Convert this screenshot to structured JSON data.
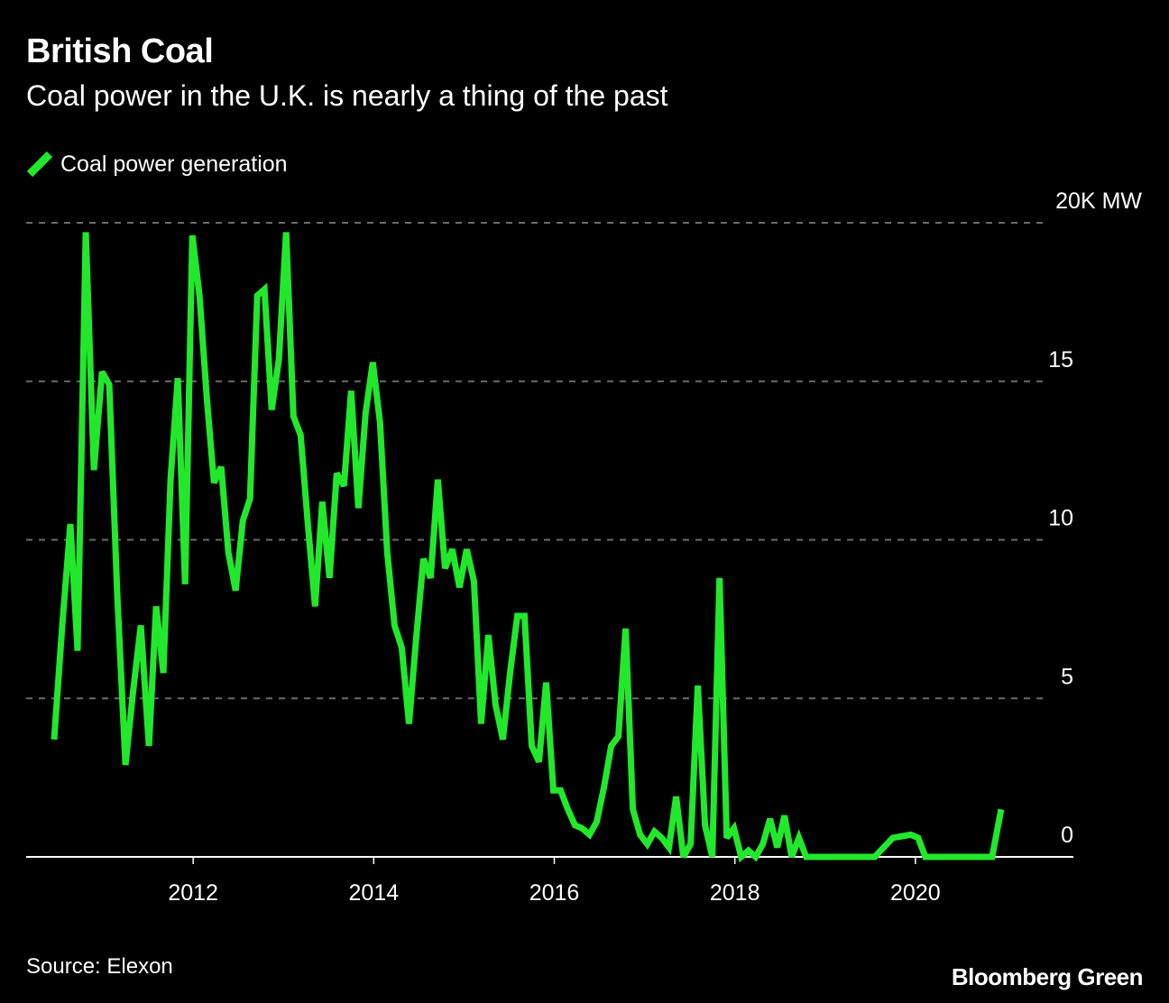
{
  "header": {
    "title": "British Coal",
    "subtitle": "Coal power in the U.K. is nearly a thing of the past"
  },
  "legend": {
    "label": "Coal power generation",
    "color": "#22e82c"
  },
  "footer": {
    "source": "Source: Elexon",
    "brand": "Bloomberg Green"
  },
  "chart_data": {
    "type": "line",
    "title": "British Coal",
    "subtitle": "Coal power in the U.K. is nearly a thing of the past",
    "xlabel": "",
    "ylabel": "",
    "x_ticks": [
      "2012",
      "2014",
      "2016",
      "2018",
      "2020"
    ],
    "y_ticks": [
      {
        "value": 20000,
        "label": "20K MW"
      },
      {
        "value": 15000,
        "label": "15"
      },
      {
        "value": 10000,
        "label": "10"
      },
      {
        "value": 5000,
        "label": "5"
      },
      {
        "value": 0,
        "label": "0"
      }
    ],
    "ylim": [
      0,
      20000
    ],
    "xlim": [
      2010.15,
      2021.75
    ],
    "grid": true,
    "colors": {
      "line": "#22e82c",
      "grid": "#6b6b6b",
      "axis": "#ffffff",
      "background": "#000000"
    },
    "series": [
      {
        "name": "Coal power generation",
        "points": [
          [
            2010.46,
            3700
          ],
          [
            2010.55,
            7300
          ],
          [
            2010.64,
            10500
          ],
          [
            2010.72,
            6500
          ],
          [
            2010.81,
            19700
          ],
          [
            2010.9,
            12200
          ],
          [
            2010.99,
            15300
          ],
          [
            2011.07,
            14900
          ],
          [
            2011.16,
            8200
          ],
          [
            2011.25,
            2900
          ],
          [
            2011.33,
            5100
          ],
          [
            2011.42,
            7300
          ],
          [
            2011.51,
            3500
          ],
          [
            2011.59,
            7900
          ],
          [
            2011.67,
            5800
          ],
          [
            2011.75,
            11900
          ],
          [
            2011.83,
            15100
          ],
          [
            2011.91,
            8600
          ],
          [
            2011.99,
            19600
          ],
          [
            2012.07,
            17700
          ],
          [
            2012.15,
            14500
          ],
          [
            2012.23,
            11800
          ],
          [
            2012.31,
            12300
          ],
          [
            2012.39,
            9600
          ],
          [
            2012.47,
            8400
          ],
          [
            2012.55,
            10600
          ],
          [
            2012.63,
            11300
          ],
          [
            2012.71,
            17700
          ],
          [
            2012.79,
            17900
          ],
          [
            2012.87,
            14100
          ],
          [
            2012.95,
            15700
          ],
          [
            2013.03,
            19700
          ],
          [
            2013.11,
            13900
          ],
          [
            2013.19,
            13300
          ],
          [
            2013.27,
            10500
          ],
          [
            2013.35,
            7900
          ],
          [
            2013.43,
            11200
          ],
          [
            2013.51,
            8800
          ],
          [
            2013.59,
            12100
          ],
          [
            2013.67,
            11700
          ],
          [
            2013.75,
            14700
          ],
          [
            2013.83,
            11000
          ],
          [
            2013.91,
            14000
          ],
          [
            2013.99,
            15600
          ],
          [
            2014.07,
            13700
          ],
          [
            2014.15,
            9600
          ],
          [
            2014.23,
            7300
          ],
          [
            2014.31,
            6600
          ],
          [
            2014.39,
            4200
          ],
          [
            2014.47,
            6900
          ],
          [
            2014.55,
            9400
          ],
          [
            2014.63,
            8800
          ],
          [
            2014.71,
            11900
          ],
          [
            2014.79,
            9100
          ],
          [
            2014.87,
            9700
          ],
          [
            2014.95,
            8500
          ],
          [
            2015.03,
            9700
          ],
          [
            2015.11,
            8700
          ],
          [
            2015.19,
            4200
          ],
          [
            2015.27,
            7000
          ],
          [
            2015.35,
            4800
          ],
          [
            2015.43,
            3700
          ],
          [
            2015.51,
            5800
          ],
          [
            2015.59,
            7600
          ],
          [
            2015.67,
            7600
          ],
          [
            2015.75,
            3500
          ],
          [
            2015.83,
            3000
          ],
          [
            2015.91,
            5500
          ],
          [
            2015.99,
            2100
          ],
          [
            2016.07,
            2100
          ],
          [
            2016.15,
            1500
          ],
          [
            2016.23,
            1000
          ],
          [
            2016.31,
            900
          ],
          [
            2016.39,
            700
          ],
          [
            2016.47,
            1100
          ],
          [
            2016.55,
            2200
          ],
          [
            2016.63,
            3500
          ],
          [
            2016.71,
            3800
          ],
          [
            2016.79,
            7200
          ],
          [
            2016.87,
            1500
          ],
          [
            2016.95,
            700
          ],
          [
            2017.03,
            400
          ],
          [
            2017.11,
            800
          ],
          [
            2017.19,
            600
          ],
          [
            2017.27,
            300
          ],
          [
            2017.35,
            1900
          ],
          [
            2017.43,
            0
          ],
          [
            2017.51,
            400
          ],
          [
            2017.59,
            5400
          ],
          [
            2017.67,
            1000
          ],
          [
            2017.75,
            0
          ],
          [
            2017.83,
            8800
          ],
          [
            2017.91,
            600
          ],
          [
            2017.99,
            900
          ],
          [
            2018.07,
            0
          ],
          [
            2018.15,
            200
          ],
          [
            2018.23,
            0
          ],
          [
            2018.31,
            400
          ],
          [
            2018.39,
            1200
          ],
          [
            2018.47,
            300
          ],
          [
            2018.55,
            1300
          ],
          [
            2018.63,
            0
          ],
          [
            2018.71,
            600
          ],
          [
            2018.79,
            0
          ],
          [
            2018.95,
            0
          ],
          [
            2019.35,
            0
          ],
          [
            2019.55,
            0
          ],
          [
            2019.75,
            600
          ],
          [
            2019.95,
            700
          ],
          [
            2020.03,
            600
          ],
          [
            2020.11,
            0
          ],
          [
            2020.85,
            0
          ],
          [
            2020.95,
            1500
          ]
        ]
      }
    ]
  }
}
